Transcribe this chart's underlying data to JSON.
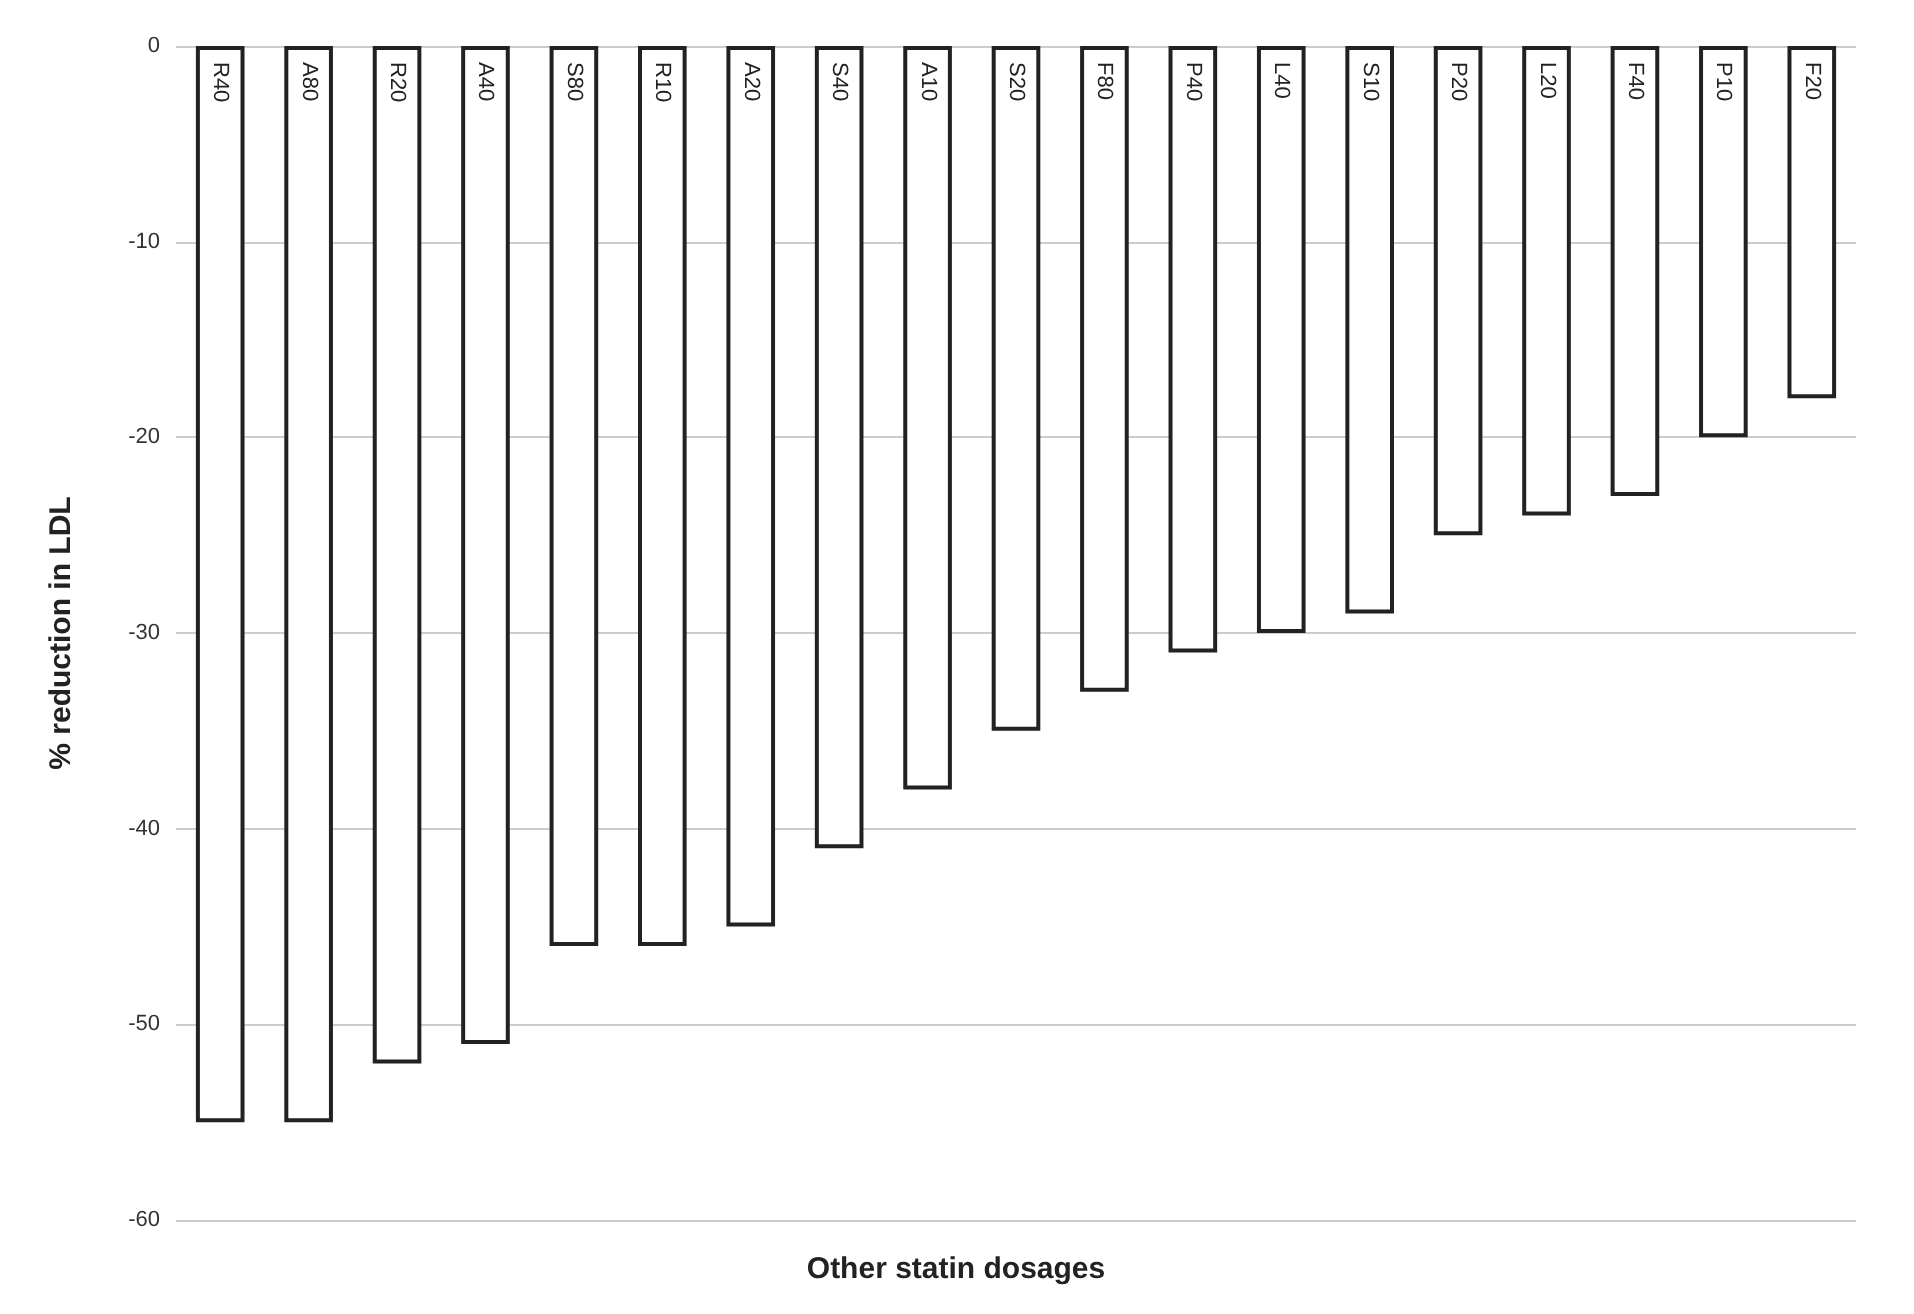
{
  "chart_data": {
    "type": "bar",
    "xlabel": "Other statin dosages",
    "ylabel": "% reduction in LDL",
    "categories": [
      "R40",
      "A80",
      "R20",
      "A40",
      "S80",
      "R10",
      "A20",
      "S40",
      "A10",
      "S20",
      "F80",
      "P40",
      "L40",
      "S10",
      "P20",
      "L20",
      "F40",
      "P10",
      "F20"
    ],
    "values": [
      -55,
      -55,
      -52,
      -51,
      -46,
      -46,
      -45,
      -41,
      -38,
      -35,
      -33,
      -31,
      -30,
      -29,
      -25,
      -24,
      -23,
      -20,
      -18
    ],
    "color": "#ffffff",
    "ylim": [
      -60,
      0
    ],
    "yticks": [
      -60,
      -50,
      -40,
      -30,
      -20,
      -10,
      0
    ],
    "grid": "y"
  }
}
